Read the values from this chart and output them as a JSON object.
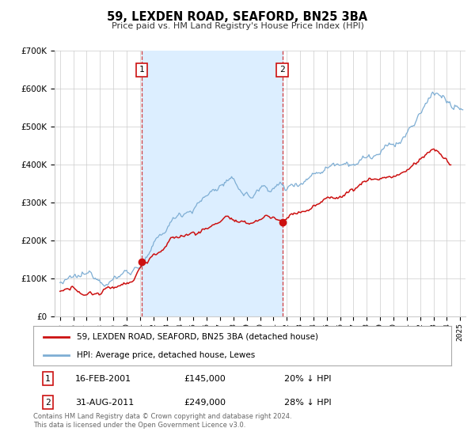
{
  "title": "59, LEXDEN ROAD, SEAFORD, BN25 3BA",
  "subtitle": "Price paid vs. HM Land Registry's House Price Index (HPI)",
  "bg_color": "#ffffff",
  "plot_bg_color": "#ffffff",
  "grid_color": "#cccccc",
  "hpi_color": "#7eaed4",
  "price_color": "#cc1111",
  "span_color": "#dceeff",
  "ylim": [
    0,
    700000
  ],
  "yticks": [
    0,
    100000,
    200000,
    300000,
    400000,
    500000,
    600000,
    700000
  ],
  "ytick_labels": [
    "£0",
    "£100K",
    "£200K",
    "£300K",
    "£400K",
    "£500K",
    "£600K",
    "£700K"
  ],
  "xlim_start": 1994.6,
  "xlim_end": 2025.4,
  "marker1_x": 2001.12,
  "marker1_y": 145000,
  "marker2_x": 2011.67,
  "marker2_y": 249000,
  "legend_line1": "59, LEXDEN ROAD, SEAFORD, BN25 3BA (detached house)",
  "legend_line2": "HPI: Average price, detached house, Lewes",
  "info1_num": "1",
  "info1_date": "16-FEB-2001",
  "info1_price": "£145,000",
  "info1_pct": "20% ↓ HPI",
  "info2_num": "2",
  "info2_date": "31-AUG-2011",
  "info2_price": "£249,000",
  "info2_pct": "28% ↓ HPI",
  "footer1": "Contains HM Land Registry data © Crown copyright and database right 2024.",
  "footer2": "This data is licensed under the Open Government Licence v3.0."
}
